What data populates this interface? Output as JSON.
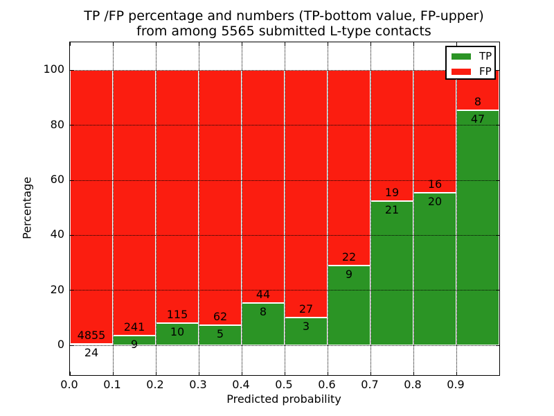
{
  "chart_data": {
    "type": "bar",
    "stacked": true,
    "normalized_to_percent": true,
    "title_line1": "TP /FP percentage and numbers (TP-bottom value, FP-upper)",
    "title_line2": "from among 5565 submitted L-type contacts",
    "xlabel": "Predicted probability",
    "ylabel": "Percentage",
    "categories": [
      "0.0-0.1",
      "0.1-0.2",
      "0.2-0.3",
      "0.3-0.4",
      "0.4-0.5",
      "0.5-0.6",
      "0.6-0.7",
      "0.7-0.8",
      "0.8-0.9",
      "0.9-1.0"
    ],
    "bin_width": 0.1,
    "series": [
      {
        "name": "TP",
        "color": "#2b9425",
        "values": [
          24,
          9,
          10,
          5,
          8,
          3,
          9,
          21,
          20,
          47
        ],
        "percent": [
          0.49,
          3.6,
          8.0,
          7.46,
          15.38,
          10.0,
          29.03,
          52.5,
          55.56,
          85.45
        ]
      },
      {
        "name": "FP",
        "color": "#fb1d10",
        "values": [
          4855,
          241,
          115,
          62,
          44,
          27,
          22,
          19,
          16,
          8
        ],
        "percent": [
          99.51,
          96.4,
          92.0,
          92.54,
          84.62,
          90.0,
          70.97,
          47.5,
          44.44,
          14.55
        ]
      }
    ],
    "label_rule": "FP count printed above TP/FP boundary, TP count printed below it",
    "x_tick_labels": [
      "0.0",
      "0.1",
      "0.2",
      "0.3",
      "0.4",
      "0.5",
      "0.6",
      "0.7",
      "0.8",
      "0.9"
    ],
    "y_ticks": [
      0,
      20,
      40,
      60,
      80,
      100
    ],
    "y_tick_labels": [
      "0",
      "20",
      "40",
      "60",
      "80",
      "100"
    ],
    "xlim": [
      0.0,
      1.0
    ],
    "ylim": [
      -10.8,
      110.2
    ],
    "grid": "dotted",
    "legend": {
      "position": "upper right"
    }
  }
}
